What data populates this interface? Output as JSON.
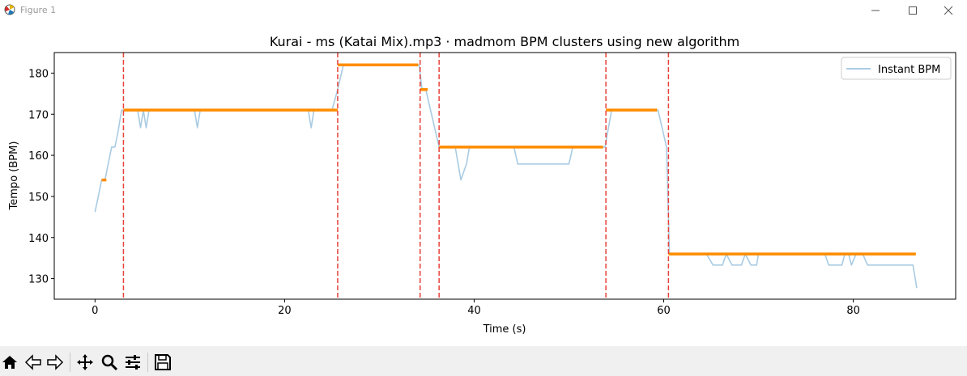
{
  "window": {
    "title": "Figure 1",
    "icon": "matplotlib-figure-icon",
    "controls": [
      "minimize-icon",
      "maximize-icon",
      "close-icon"
    ]
  },
  "toolbar": {
    "buttons": [
      {
        "name": "home-button",
        "icon": "home-icon"
      },
      {
        "name": "back-button",
        "icon": "arrow-left-icon"
      },
      {
        "name": "forward-button",
        "icon": "arrow-right-icon"
      },
      {
        "name": "pan-button",
        "icon": "move-icon"
      },
      {
        "name": "zoom-button",
        "icon": "magnifier-icon"
      },
      {
        "name": "configure-subplots-button",
        "icon": "sliders-icon"
      },
      {
        "name": "save-button",
        "icon": "floppy-disk-icon"
      }
    ]
  },
  "chart_data": {
    "type": "line",
    "title": "Kurai - ms (Katai Mix).mp3 · madmom BPM clusters using new algorithm",
    "xlabel": "Time (s)",
    "ylabel": "Tempo (BPM)",
    "xlim": [
      -4.3,
      90.8
    ],
    "ylim": [
      125,
      185
    ],
    "xticks": [
      0,
      20,
      40,
      60,
      80
    ],
    "yticks": [
      130,
      140,
      150,
      160,
      170,
      180
    ],
    "legend": {
      "position": "upper-right",
      "entries": [
        "Instant BPM"
      ]
    },
    "colors": {
      "instant": "#a9cbe2",
      "cluster": "#ff8c00",
      "boundary": "#e8413a"
    },
    "series": [
      {
        "name": "Instant BPM",
        "x": [
          0,
          0.35,
          0.7,
          1.05,
          1.4,
          1.75,
          2.1,
          2.45,
          2.8,
          3.1,
          3.5,
          4.0,
          4.5,
          4.8,
          5.1,
          5.4,
          5.7,
          6.0,
          8,
          10.5,
          10.8,
          11.1,
          11.5,
          15,
          20,
          22.5,
          22.8,
          23.1,
          23.4,
          25,
          25.6,
          26.2,
          30,
          34.2,
          34.5,
          34.9,
          35.4,
          36.3,
          37,
          38,
          38.3,
          38.6,
          39.2,
          39.5,
          40,
          41,
          44.2,
          44.6,
          50,
          50.4,
          51.5,
          53.8,
          54.5,
          59,
          59.4,
          60.3,
          60.6,
          61,
          62,
          64.5,
          65.2,
          66.2,
          66.6,
          67.2,
          68.2,
          68.6,
          69.2,
          69.8,
          70,
          75,
          77,
          77.4,
          78.8,
          79.1,
          79.5,
          79.8,
          80.3,
          81,
          81.5,
          82,
          85,
          86.3,
          86.7
        ],
        "values": [
          146.2,
          150,
          154,
          154,
          158,
          162,
          162,
          166,
          171,
          171,
          171,
          171,
          171,
          166.7,
          171,
          166.7,
          171,
          171,
          171,
          171,
          166.7,
          171,
          171,
          171,
          171,
          171,
          166.7,
          171,
          171,
          171,
          176,
          182,
          182,
          182,
          176,
          176,
          171,
          162,
          162,
          162,
          158,
          154,
          158,
          162,
          162,
          162,
          162,
          157.9,
          157.9,
          162,
          162,
          162,
          171,
          171,
          171,
          162,
          136,
          136,
          136,
          136,
          133.3,
          133.3,
          136,
          133.3,
          133.3,
          136,
          133.3,
          133.3,
          136,
          136,
          136,
          133.3,
          133.3,
          136,
          136,
          133.3,
          136,
          136,
          133.3,
          133.3,
          133.3,
          133.3,
          127.7
        ]
      }
    ],
    "clusters": [
      {
        "start": 0.7,
        "end": 1.2,
        "bpm": 154
      },
      {
        "start": 3.0,
        "end": 25.6,
        "bpm": 171
      },
      {
        "start": 25.6,
        "end": 34.1,
        "bpm": 182
      },
      {
        "start": 34.3,
        "end": 35.1,
        "bpm": 176
      },
      {
        "start": 36.3,
        "end": 53.6,
        "bpm": 162
      },
      {
        "start": 53.9,
        "end": 59.3,
        "bpm": 171
      },
      {
        "start": 60.5,
        "end": 86.6,
        "bpm": 136
      }
    ],
    "boundaries": [
      3.0,
      25.6,
      34.3,
      36.3,
      53.9,
      60.5
    ]
  }
}
